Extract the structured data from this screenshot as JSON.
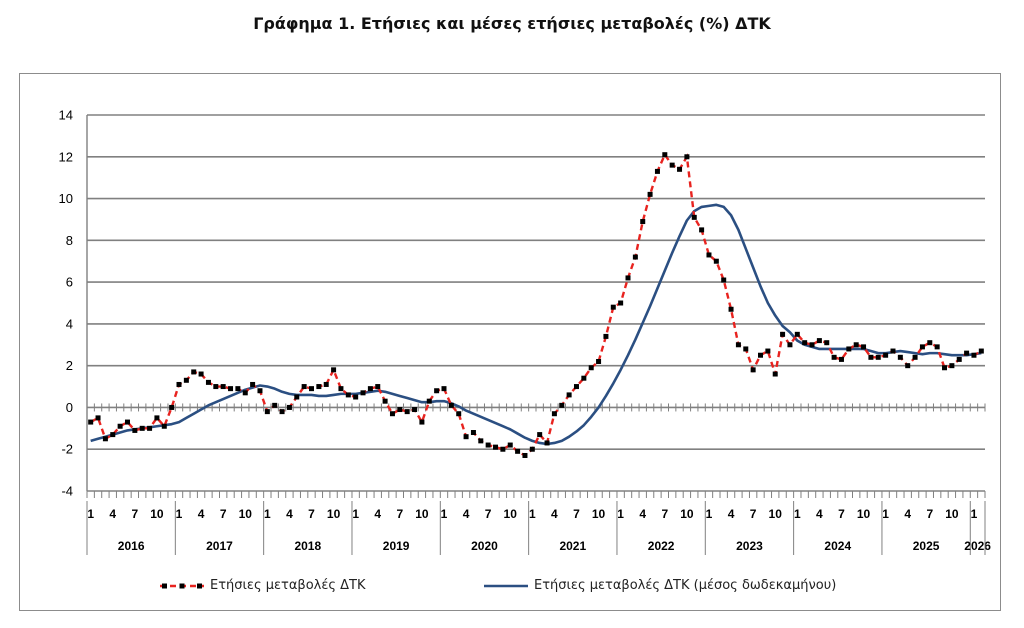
{
  "title": "Γράφημα 1. Ετήσιες και μέσες ετήσιες μεταβολές (%) ΔΤΚ",
  "legend": {
    "series1": "Ετήσιες μεταβολές ΔΤΚ",
    "series2": "Ετήσιες μεταβολές ΔΤΚ (μέσος δωδεκαμήνου)"
  },
  "colors": {
    "series1": "#e8231f",
    "series1_marker": "#000000",
    "series2": "#2b4f82",
    "grid": "#808080"
  },
  "chart_data": {
    "type": "line",
    "ylim": [
      -4,
      14
    ],
    "yticks": [
      -4,
      -2,
      0,
      2,
      4,
      6,
      8,
      10,
      12,
      14
    ],
    "month_ticks": [
      "1",
      "4",
      "7",
      "10"
    ],
    "years": [
      "2016",
      "2017",
      "2018",
      "2019",
      "2020",
      "2021",
      "2022",
      "2023",
      "2024",
      "2025",
      "2026"
    ],
    "x_start": "2016-01",
    "grid": true,
    "legend_position": "bottom",
    "series": [
      {
        "name": "Ετήσιες μεταβολές ΔΤΚ",
        "style": "dashed-markers",
        "values": [
          -0.7,
          -0.5,
          -1.5,
          -1.3,
          -0.9,
          -0.7,
          -1.1,
          -1.0,
          -1.0,
          -0.5,
          -0.9,
          0.0,
          1.1,
          1.3,
          1.7,
          1.6,
          1.2,
          1.0,
          1.0,
          0.9,
          0.9,
          0.7,
          1.1,
          0.8,
          -0.2,
          0.1,
          -0.2,
          0.0,
          0.5,
          1.0,
          0.9,
          1.0,
          1.1,
          1.8,
          0.9,
          0.6,
          0.5,
          0.7,
          0.9,
          1.0,
          0.3,
          -0.3,
          -0.1,
          -0.2,
          -0.1,
          -0.7,
          0.3,
          0.8,
          0.9,
          0.1,
          -0.3,
          -1.4,
          -1.2,
          -1.6,
          -1.8,
          -1.9,
          -2.0,
          -1.8,
          -2.1,
          -2.3,
          -2.0,
          -1.3,
          -1.7,
          -0.3,
          0.1,
          0.6,
          1.0,
          1.4,
          1.9,
          2.2,
          3.4,
          4.8,
          5.0,
          6.2,
          7.2,
          8.9,
          10.2,
          11.3,
          12.1,
          11.6,
          11.4,
          12.0,
          9.1,
          8.5,
          7.3,
          7.0,
          6.1,
          4.7,
          3.0,
          2.8,
          1.8,
          2.5,
          2.7,
          1.6,
          3.5,
          3.0,
          3.5,
          3.1,
          3.0,
          3.2,
          3.1,
          2.4,
          2.3,
          2.8,
          3.0,
          2.9,
          2.4,
          2.4,
          2.5,
          2.7,
          2.4,
          2.0,
          2.4,
          2.9,
          3.1,
          2.9,
          1.9,
          2.0,
          2.3,
          2.6,
          2.5,
          2.7
        ]
      },
      {
        "name": "Ετήσιες μεταβολές ΔΤΚ (μέσος δωδεκαμήνου)",
        "style": "solid",
        "values": [
          -1.6,
          -1.5,
          -1.4,
          -1.3,
          -1.2,
          -1.1,
          -1.05,
          -1.0,
          -0.95,
          -0.9,
          -0.85,
          -0.8,
          -0.7,
          -0.5,
          -0.3,
          -0.1,
          0.1,
          0.25,
          0.4,
          0.55,
          0.7,
          0.85,
          0.95,
          1.05,
          1.0,
          0.9,
          0.75,
          0.65,
          0.6,
          0.6,
          0.6,
          0.55,
          0.55,
          0.6,
          0.65,
          0.65,
          0.65,
          0.7,
          0.75,
          0.8,
          0.75,
          0.65,
          0.55,
          0.45,
          0.35,
          0.25,
          0.25,
          0.3,
          0.3,
          0.2,
          0.05,
          -0.15,
          -0.3,
          -0.45,
          -0.6,
          -0.75,
          -0.9,
          -1.05,
          -1.25,
          -1.45,
          -1.6,
          -1.7,
          -1.75,
          -1.7,
          -1.6,
          -1.4,
          -1.15,
          -0.85,
          -0.45,
          0.0,
          0.55,
          1.15,
          1.8,
          2.5,
          3.25,
          4.05,
          4.85,
          5.7,
          6.55,
          7.4,
          8.2,
          8.95,
          9.4,
          9.6,
          9.65,
          9.7,
          9.6,
          9.2,
          8.5,
          7.6,
          6.7,
          5.8,
          5.0,
          4.4,
          3.9,
          3.6,
          3.2,
          3.0,
          2.9,
          2.8,
          2.8,
          2.8,
          2.8,
          2.8,
          2.8,
          2.8,
          2.7,
          2.6,
          2.6,
          2.65,
          2.7,
          2.65,
          2.6,
          2.55,
          2.6,
          2.6,
          2.55,
          2.5,
          2.5,
          2.5,
          2.55,
          2.6
        ]
      }
    ]
  }
}
